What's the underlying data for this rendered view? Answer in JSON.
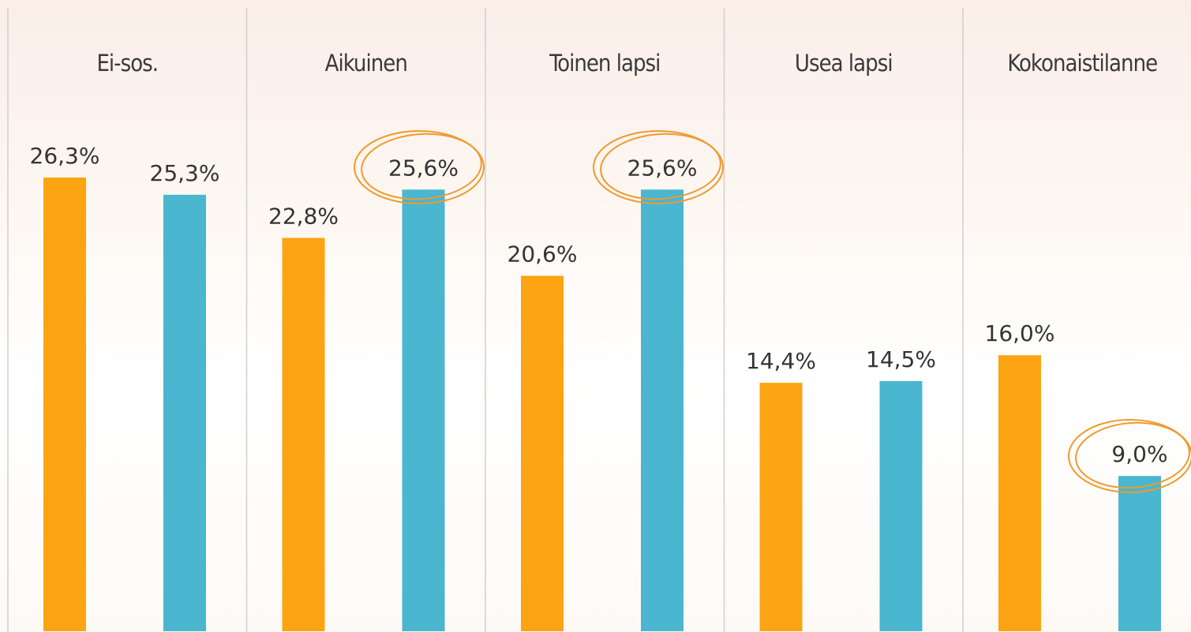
{
  "chart_data": {
    "type": "bar",
    "categories": [
      "Ei-sos.",
      "Aikuinen",
      "Toinen lapsi",
      "Usea lapsi",
      "Kokonaistilanne"
    ],
    "series": [
      {
        "color": "#fca412",
        "values": [
          26.3,
          22.8,
          20.6,
          14.4,
          16.0
        ],
        "value_labels": [
          "26,3%",
          "22,8%",
          "20,6%",
          "14,4%",
          "16,0%"
        ]
      },
      {
        "color": "#4ab6cf",
        "values": [
          25.3,
          25.6,
          25.6,
          14.5,
          9.0
        ],
        "value_labels": [
          "25,3%",
          "25,6%",
          "25,6%",
          "14,5%",
          "9,0%"
        ]
      }
    ]
  }
}
